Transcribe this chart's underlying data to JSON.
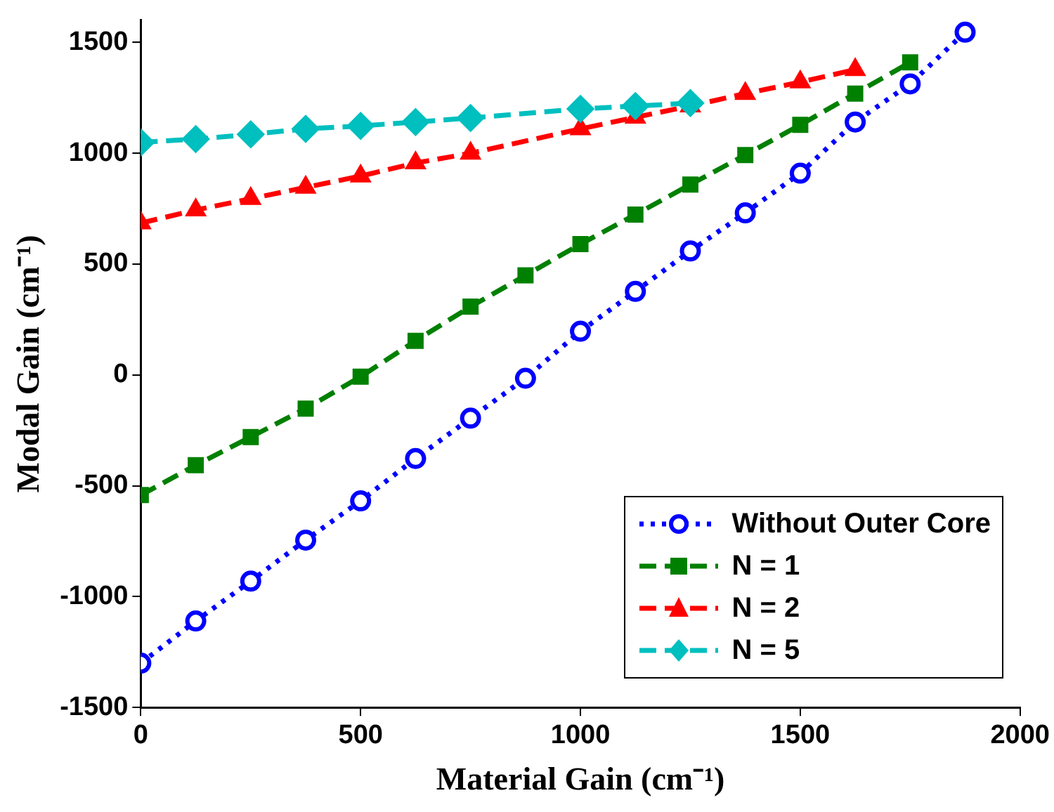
{
  "chart_data": {
    "type": "line",
    "xlabel": "Material Gain (cm⁻¹)",
    "ylabel": "Modal Gain (cm⁻¹)",
    "xlim": [
      0,
      2000
    ],
    "xticks": [
      0,
      500,
      1000,
      1500,
      2000
    ],
    "ylim": [
      -1500,
      1600
    ],
    "yticks": [
      -1500,
      -1000,
      -500,
      0,
      500,
      1000,
      1500
    ],
    "grid": false,
    "legend": "bottom right",
    "series": [
      {
        "name": "Without Outer Core",
        "color": "#0000ff",
        "marker": "circle",
        "line_style": "dotted",
        "x": [
          0,
          125,
          250,
          375,
          500,
          625,
          750,
          875,
          1000,
          1125,
          1250,
          1375,
          1500,
          1625,
          1750,
          1875
        ],
        "values": [
          -1300,
          -1110,
          -930,
          -745,
          -568,
          -377,
          -195,
          -15,
          197,
          377,
          559,
          731,
          910,
          1141,
          1313,
          1546
        ]
      },
      {
        "name": "N = 1",
        "color": "#008000",
        "marker": "square",
        "line_style": "dashed",
        "x": [
          0,
          125,
          250,
          375,
          500,
          625,
          750,
          875,
          1000,
          1125,
          1250,
          1375,
          1500,
          1625,
          1750
        ],
        "values": [
          -542,
          -407,
          -280,
          -152,
          -8,
          154,
          308,
          449,
          590,
          723,
          859,
          992,
          1128,
          1269,
          1410
        ]
      },
      {
        "name": "N = 2",
        "color": "#ff0000",
        "marker": "triangle",
        "line_style": "dashed",
        "x": [
          0,
          125,
          250,
          375,
          500,
          625,
          750,
          1000,
          1125,
          1250,
          1375,
          1500,
          1625
        ],
        "values": [
          685,
          744,
          795,
          846,
          897,
          956,
          1000,
          1110,
          1162,
          1213,
          1269,
          1321,
          1377
        ]
      },
      {
        "name": "N = 5",
        "color": "#00bfbf",
        "marker": "diamond",
        "line_style": "dashed",
        "x": [
          0,
          125,
          250,
          375,
          500,
          625,
          750,
          1000,
          1125,
          1250
        ],
        "values": [
          1049,
          1064,
          1085,
          1110,
          1123,
          1141,
          1159,
          1200,
          1213,
          1226
        ]
      }
    ]
  }
}
